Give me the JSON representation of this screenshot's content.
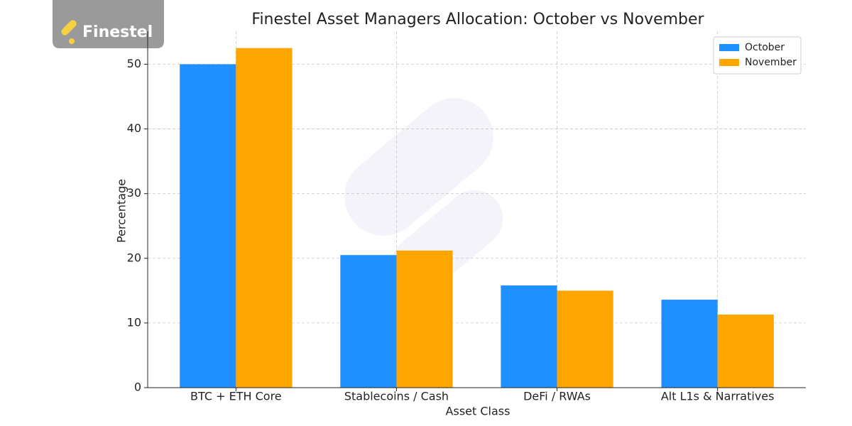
{
  "brand": "Finestel",
  "chart_data": {
    "type": "bar",
    "title": "Finestel Asset Managers Allocation: October vs November",
    "x_label": "Asset Class",
    "y_label": "Percentage",
    "categories": [
      "BTC + ETH Core",
      "Stablecoins / Cash",
      "DeFi / RWAs",
      "Alt L1s & Narratives"
    ],
    "series": [
      {
        "name": "October",
        "color": "#1e90ff",
        "values": [
          50,
          20.5,
          15.8,
          13.6
        ]
      },
      {
        "name": "November",
        "color": "#ffa500",
        "values": [
          52.5,
          21.2,
          15,
          11.3
        ]
      }
    ],
    "ylim": [
      0,
      55.1
    ],
    "yticks": [
      0,
      10,
      20,
      30,
      40,
      50
    ],
    "grid": true,
    "legend": "upper right"
  }
}
